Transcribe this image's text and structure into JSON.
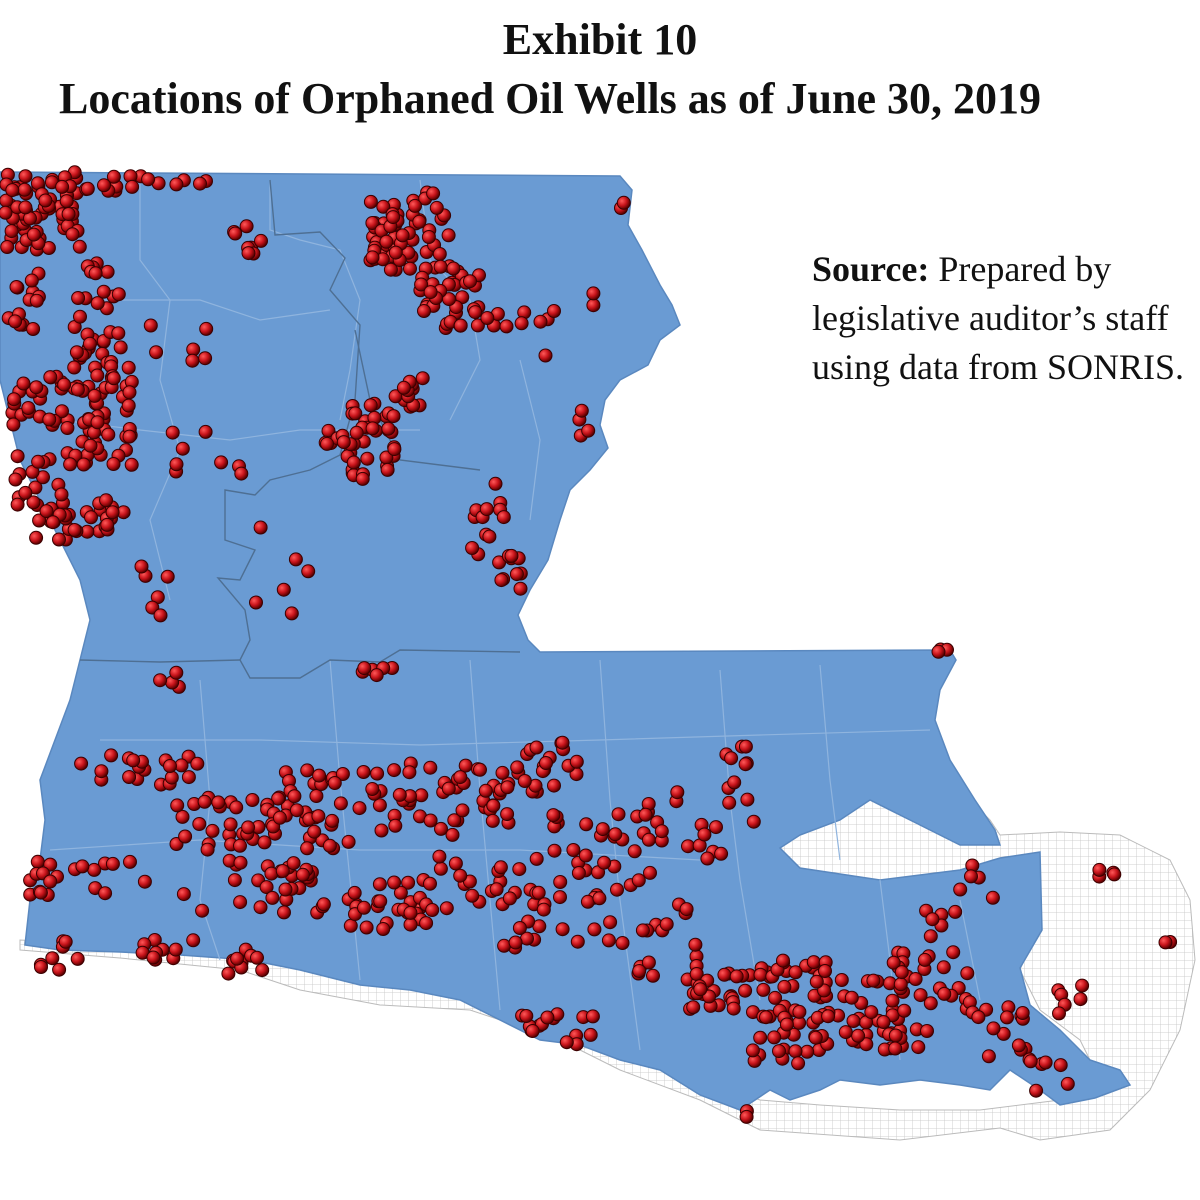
{
  "exhibit": {
    "label": "Exhibit 10",
    "title": "Locations of Orphaned Oil Wells as of June 30, 2019"
  },
  "source": {
    "label": "Source:",
    "line1": "Prepared by",
    "line2": "legislative auditor’s staff",
    "line3": "using data from SONRIS."
  },
  "map": {
    "region": "Louisiana",
    "land_color": "#6a9bd3",
    "parish_line_color": "#8fb4de",
    "region_line_color": "#4e6f93",
    "water_grid_color": "#bdbdbd",
    "well_color": "#c8141b",
    "well_outline_color": "#3a0000",
    "marker_icon": "oil-well-dot-icon"
  }
}
